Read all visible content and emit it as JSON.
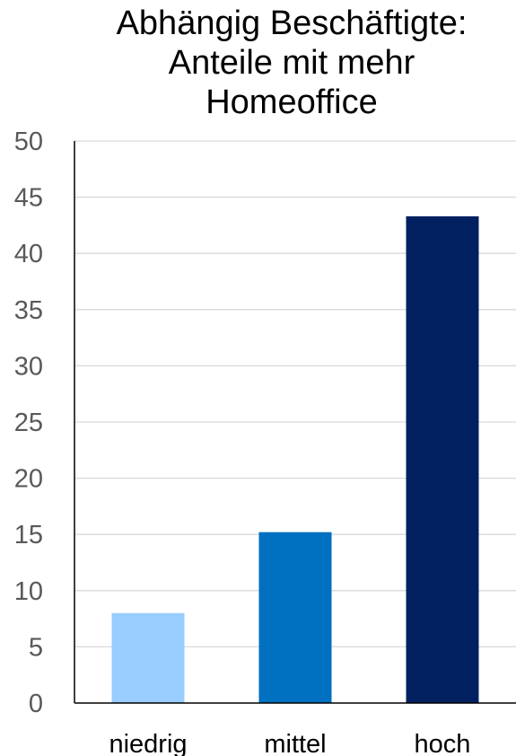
{
  "chart_data": {
    "type": "bar",
    "title_lines": [
      "Abhängig Beschäftigte:",
      "Anteile mit mehr",
      "Homeoffice"
    ],
    "categories": [
      "niedrig",
      "mittel",
      "hoch"
    ],
    "values": [
      8,
      15.2,
      43.3
    ],
    "bar_colors": [
      "#99CCFF",
      "#0070C0",
      "#002060"
    ],
    "ylim": [
      0,
      50
    ],
    "yticks": [
      0,
      5,
      10,
      15,
      20,
      25,
      30,
      35,
      40,
      45,
      50
    ],
    "xlabel": "",
    "ylabel": "",
    "grid": true,
    "gridline_color": "#D9D9D9",
    "axis_color": "#000000",
    "tick_label_color": "#595959"
  }
}
